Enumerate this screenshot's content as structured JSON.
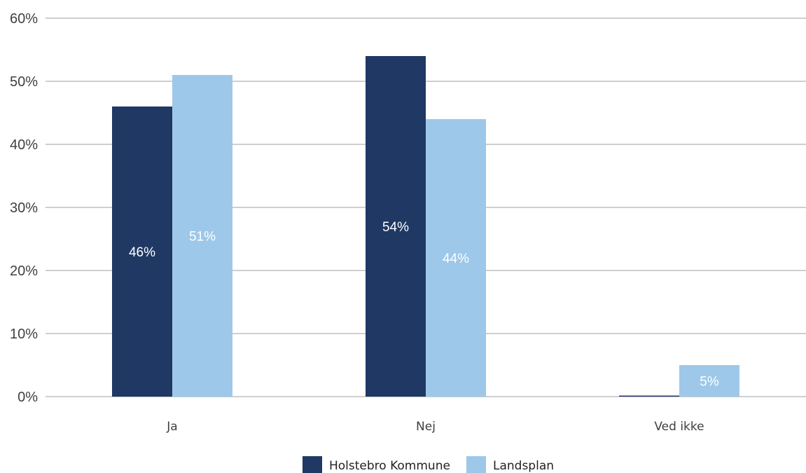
{
  "chart_data": {
    "type": "bar",
    "title": "",
    "xlabel": "",
    "ylabel": "",
    "categories": [
      "Ja",
      "Nej",
      "Ved ikke"
    ],
    "ylim": [
      0,
      60
    ],
    "yticks": [
      0,
      10,
      20,
      30,
      40,
      50,
      60
    ],
    "ytick_labels": [
      "0%",
      "10%",
      "20%",
      "30%",
      "40%",
      "50%",
      "60%"
    ],
    "grid": true,
    "legend_position": "bottom",
    "series": [
      {
        "name": "Holstebro Kommune",
        "color": "#203864",
        "values": [
          46,
          54,
          0
        ],
        "labels": [
          "46%",
          "54%",
          ""
        ]
      },
      {
        "name": "Landsplan",
        "color": "#9DC8E9",
        "values": [
          51,
          44,
          5
        ],
        "labels": [
          "51%",
          "44%",
          "5%"
        ]
      }
    ]
  }
}
